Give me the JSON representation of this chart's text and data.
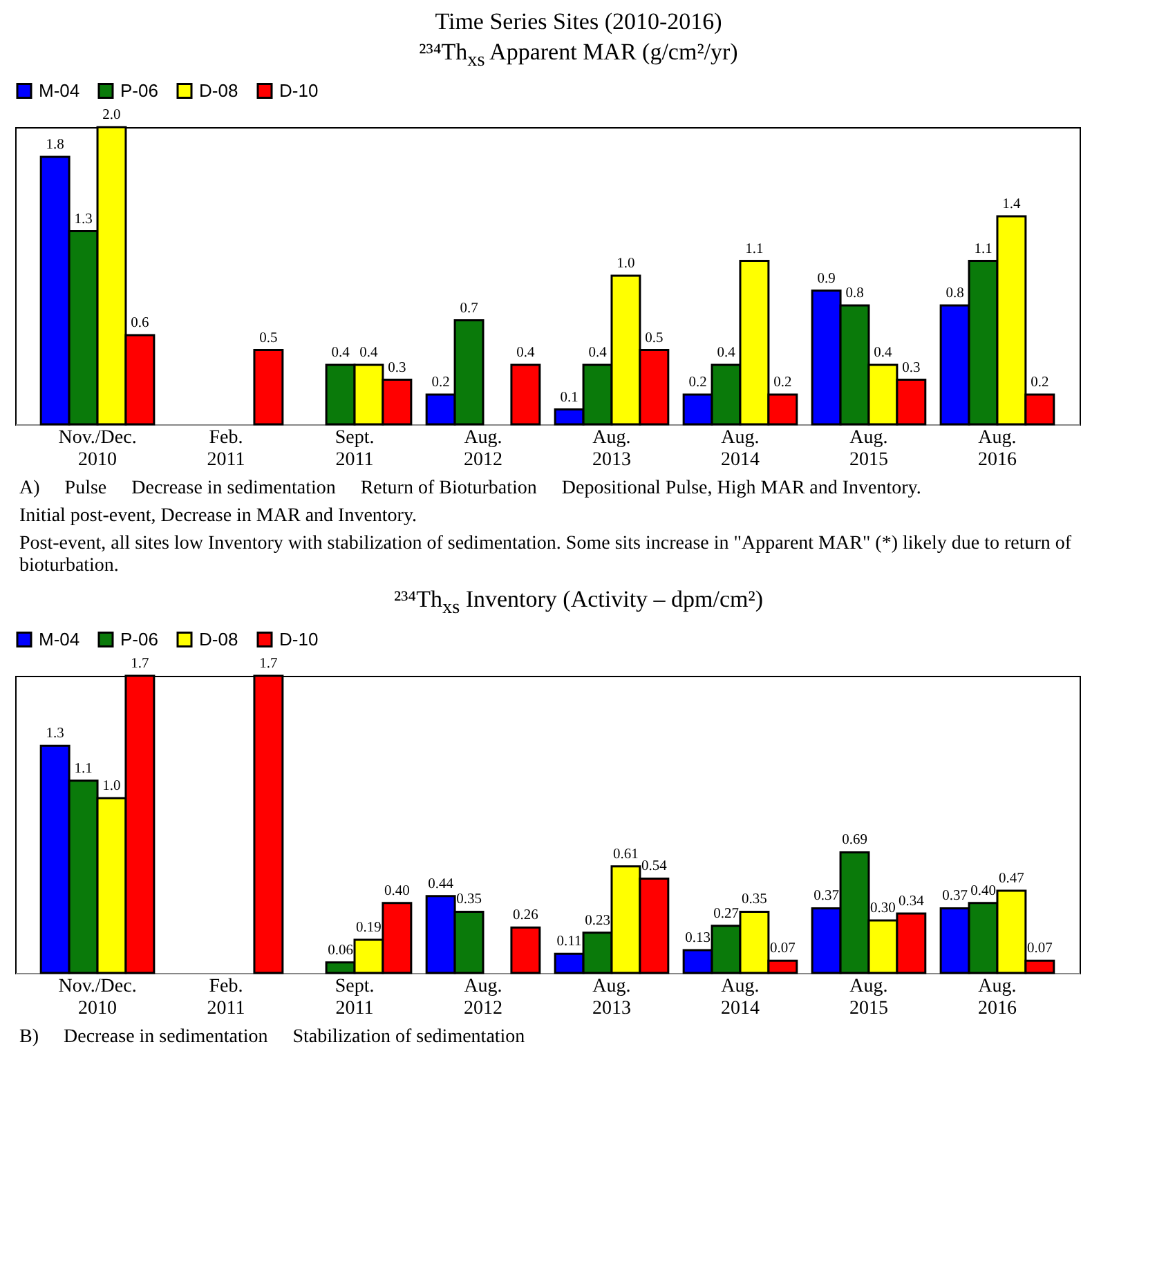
{
  "chart_data": [
    {
      "type": "bar",
      "title": "Time Series Sites (2010-2016)",
      "subtitle": "²³⁴Th$_{xs}$ Apparent MAR (g/cm²/yr)",
      "categories": [
        "Nov./Dec. 2010",
        "Feb. 2011",
        "Sept. 2011",
        "Aug. 2012",
        "Aug. 2013",
        "Aug. 2014",
        "Aug. 2015",
        "Aug. 2016"
      ],
      "series": [
        {
          "name": "M-04",
          "color": "#0000ff",
          "values": [
            1.8,
            null,
            null,
            0.2,
            0.1,
            0.2,
            0.9,
            0.8
          ],
          "value_labels": [
            "1.8",
            null,
            null,
            "0.2",
            "0.1",
            "0.2",
            "0.9",
            "0.8"
          ]
        },
        {
          "name": "P-06",
          "color": "#0a7a0a",
          "values": [
            1.3,
            null,
            0.4,
            0.7,
            0.4,
            0.4,
            0.8,
            1.1
          ],
          "value_labels": [
            "1.3",
            null,
            "0.4",
            "0.7",
            "0.4",
            "0.4",
            "0.8",
            "1.1"
          ]
        },
        {
          "name": "D-08",
          "color": "#ffff00",
          "values": [
            2.0,
            null,
            0.4,
            null,
            1.0,
            1.1,
            0.4,
            1.4
          ],
          "value_labels": [
            "2.0",
            null,
            "0.4",
            null,
            "1.0",
            "1.1",
            "0.4",
            "1.4"
          ]
        },
        {
          "name": "D-10",
          "color": "#ff0000",
          "values": [
            0.6,
            0.5,
            0.3,
            0.4,
            0.5,
            0.2,
            0.3,
            0.2
          ],
          "value_labels": [
            "0.6",
            "0.5",
            "0.3",
            "0.4",
            "0.5",
            "0.2",
            "0.3",
            "0.2"
          ]
        }
      ],
      "legend": "top",
      "tick_labels": "x",
      "annotations": [
        "A)",
        "Pulse",
        "Decrease in sedimentation",
        "Return of Bioturbation",
        "Depositional Pulse, High MAR and Inventory.",
        "Initial post-event, Decrease in MAR and Inventory.",
        "Post-event, all sites low Inventory with stabilization of sedimentation. Some sits increase in \"Apparent MAR\" (*) likely due to return of bioturbation."
      ]
    },
    {
      "type": "bar",
      "title": "²³⁴Th$_{xs}$ Inventory (Activity – dpm/cm²)",
      "categories": [
        "Nov./Dec. 2010",
        "Feb. 2011",
        "Sept. 2011",
        "Aug. 2012",
        "Aug. 2013",
        "Aug. 2014",
        "Aug. 2015",
        "Aug. 2016"
      ],
      "series": [
        {
          "name": "M-04",
          "color": "#0000ff",
          "values": [
            1.3,
            null,
            null,
            0.44,
            0.11,
            0.13,
            0.37,
            0.37
          ],
          "value_labels": [
            "1.3",
            null,
            null,
            "0.44",
            "0.11",
            "0.13",
            "0.37",
            "0.37"
          ]
        },
        {
          "name": "P-06",
          "color": "#0a7a0a",
          "values": [
            1.1,
            null,
            0.06,
            0.35,
            0.23,
            0.27,
            0.69,
            0.4
          ],
          "value_labels": [
            "1.1",
            null,
            "0.06",
            "0.35",
            "0.23",
            "0.27",
            "0.69",
            "0.40"
          ]
        },
        {
          "name": "D-08",
          "color": "#ffff00",
          "values": [
            1.0,
            null,
            0.19,
            null,
            0.61,
            0.35,
            0.3,
            0.47
          ],
          "value_labels": [
            "1.0",
            null,
            "0.19",
            null,
            "0.61",
            "0.35",
            "0.30",
            "0.47"
          ]
        },
        {
          "name": "D-10",
          "color": "#ff0000",
          "values": [
            1.7,
            1.7,
            0.4,
            0.26,
            0.54,
            0.07,
            0.34,
            0.07
          ],
          "value_labels": [
            "1.7",
            "1.7",
            "0.40",
            "0.26",
            "0.54",
            "0.07",
            "0.34",
            "0.07"
          ]
        }
      ],
      "legend": "top",
      "tick_labels": "x",
      "annotations": [
        "B)",
        "Decrease in sedimentation",
        "Stabilization of sedimentation"
      ]
    }
  ]
}
